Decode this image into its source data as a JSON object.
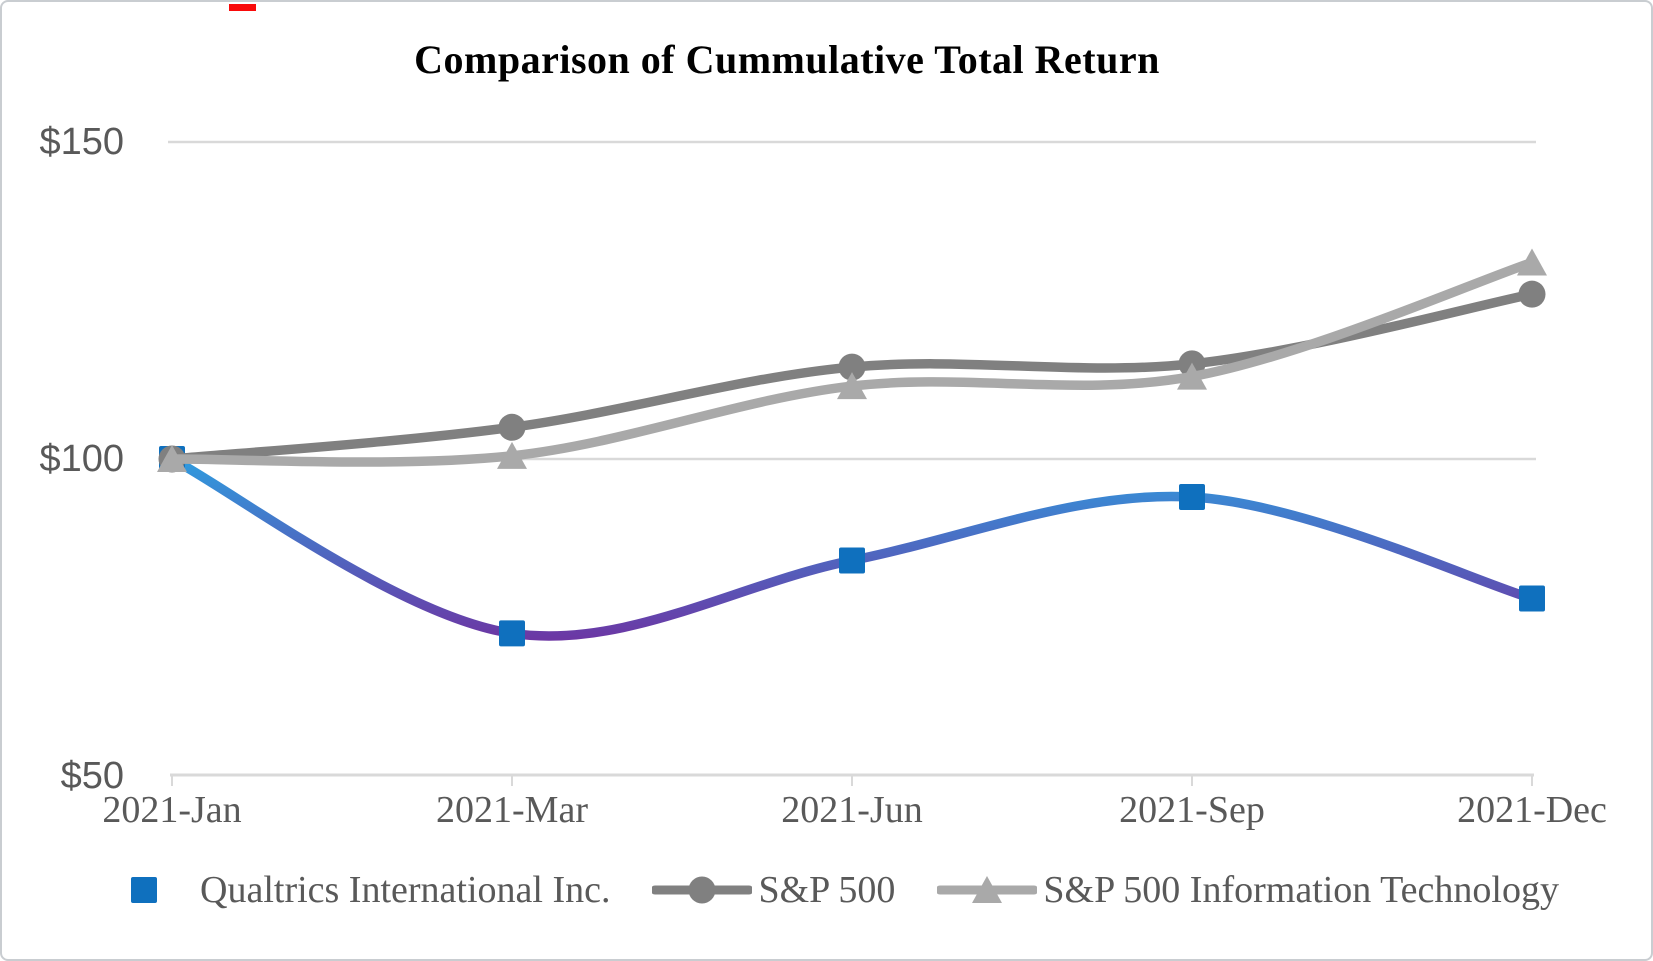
{
  "title": "Comparison of Cummulative Total Return",
  "colors": {
    "background": "#FFFFFF",
    "border": "#C9CDD1",
    "title_text": "#000000",
    "axis_text": "#595959",
    "grid": "#D9D9D9",
    "red_mark": "#F90A0A",
    "qualtrics_marker": "#0F70BE",
    "qualtrics_gradient_top": "#2BA2E2",
    "qualtrics_gradient_bottom": "#7030A0",
    "sp500": "#808080",
    "sp500_it": "#A9A9A9"
  },
  "y_axis": {
    "tick_labels": [
      "$150",
      "$100",
      "$50"
    ],
    "tick_values": [
      150,
      100,
      50
    ]
  },
  "x_axis": {
    "tick_labels": [
      "2021-Jan",
      "2021-Mar",
      "2021-Jun",
      "2021-Sep",
      "2021-Dec"
    ]
  },
  "legend": {
    "items": [
      {
        "label": "Qualtrics International Inc.",
        "marker": "square-marker-icon"
      },
      {
        "label": "S&P 500",
        "marker": "circle-marker-icon"
      },
      {
        "label": "S&P 500 Information Technology",
        "marker": "triangle-marker-icon"
      }
    ]
  },
  "chart_data": {
    "type": "line",
    "title": "Comparison of Cummulative Total Return",
    "categories": [
      "2021-Jan",
      "2021-Mar",
      "2021-Jun",
      "2021-Sep",
      "2021-Dec"
    ],
    "series": [
      {
        "name": "Qualtrics International Inc.",
        "values": [
          100,
          72.5,
          84,
          94,
          78
        ],
        "marker": "square",
        "marker_color": "#0F70BE",
        "line_gradient": [
          "#2BA2E2",
          "#7030A0"
        ]
      },
      {
        "name": "S&P 500",
        "values": [
          100,
          105,
          114.5,
          115,
          126
        ],
        "marker": "circle",
        "color": "#808080"
      },
      {
        "name": "S&P 500 Information Technology",
        "values": [
          100,
          100.5,
          111.5,
          113,
          131
        ],
        "marker": "triangle",
        "color": "#A9A9A9"
      }
    ],
    "ylabel_prefix": "$",
    "ylim": [
      50,
      150
    ],
    "yticks": [
      50,
      100,
      150
    ],
    "grid": "horizontal",
    "legend_position": "bottom",
    "smoothed": true
  }
}
